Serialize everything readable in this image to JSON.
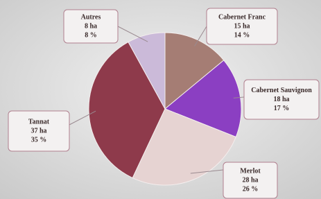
{
  "chart_data": {
    "type": "pie",
    "categories": [
      "Cabernet Franc",
      "Cabernet Sauvignon",
      "Merlot",
      "Tannat",
      "Autres"
    ],
    "values": [
      14,
      17,
      26,
      35,
      8
    ],
    "value_labels": [
      "14 %",
      "17 %",
      "26 %",
      "35 %",
      "8 %"
    ],
    "area_values": [
      15,
      18,
      28,
      37,
      8
    ],
    "area_labels": [
      "15 ha",
      "18 ha",
      "28 ha",
      "37 ha",
      "8 ha"
    ],
    "colors": [
      "#a57d74",
      "#8b3fc2",
      "#e6d3d2",
      "#8e3a4b",
      "#cbbad9"
    ]
  }
}
